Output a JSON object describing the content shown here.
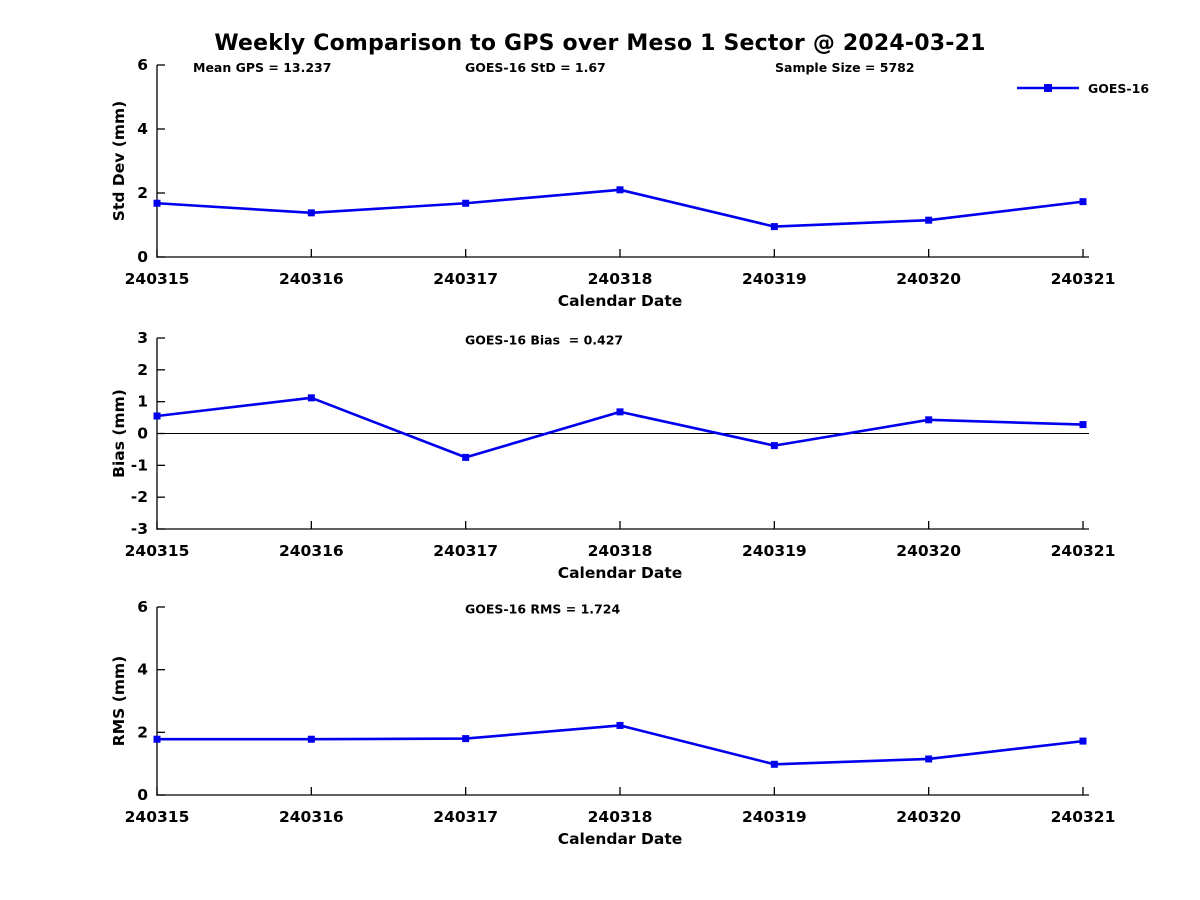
{
  "title": "Weekly Comparison to GPS over Meso 1 Sector @ 2024-03-21",
  "annotations": {
    "mean_gps": "Mean GPS = 13.237",
    "goes16_std": "GOES-16 StD = 1.67",
    "sample_size": "Sample Size = 5782"
  },
  "legend": {
    "label": "GOES-16",
    "position": "top-right"
  },
  "colors": {
    "line": "#0000ee",
    "axis": "#000000",
    "zero_line": "#000000",
    "background": "#ffffff"
  },
  "chart_data": [
    {
      "name": "stddev",
      "type": "line",
      "title": "",
      "categories": [
        "240315",
        "240316",
        "240317",
        "240318",
        "240319",
        "240320",
        "240321"
      ],
      "series": [
        {
          "name": "GOES-16",
          "values": [
            1.68,
            1.38,
            1.68,
            2.1,
            0.95,
            1.15,
            1.73
          ]
        }
      ],
      "xlabel": "Calendar Date",
      "ylabel": "Std Dev (mm)",
      "ylim": [
        0,
        6
      ],
      "yticks": [
        0,
        2,
        4,
        6
      ],
      "grid": false,
      "zero_line": false
    },
    {
      "name": "bias",
      "type": "line",
      "title": "GOES-16 Bias  = 0.427",
      "categories": [
        "240315",
        "240316",
        "240317",
        "240318",
        "240319",
        "240320",
        "240321"
      ],
      "series": [
        {
          "name": "GOES-16",
          "values": [
            0.55,
            1.12,
            -0.75,
            0.68,
            -0.38,
            0.43,
            0.28
          ]
        }
      ],
      "xlabel": "Calendar Date",
      "ylabel": "Bias (mm)",
      "ylim": [
        -3,
        3
      ],
      "yticks": [
        3,
        2,
        1,
        0,
        -1,
        -2,
        -3
      ],
      "grid": false,
      "zero_line": true
    },
    {
      "name": "rms",
      "type": "line",
      "title": "GOES-16 RMS = 1.724",
      "categories": [
        "240315",
        "240316",
        "240317",
        "240318",
        "240319",
        "240320",
        "240321"
      ],
      "series": [
        {
          "name": "GOES-16",
          "values": [
            1.78,
            1.78,
            1.8,
            2.22,
            0.98,
            1.15,
            1.72
          ]
        }
      ],
      "xlabel": "Calendar Date",
      "ylabel": "RMS (mm)",
      "ylim": [
        0,
        6
      ],
      "yticks": [
        0,
        2,
        4,
        6
      ],
      "grid": false,
      "zero_line": false
    }
  ]
}
